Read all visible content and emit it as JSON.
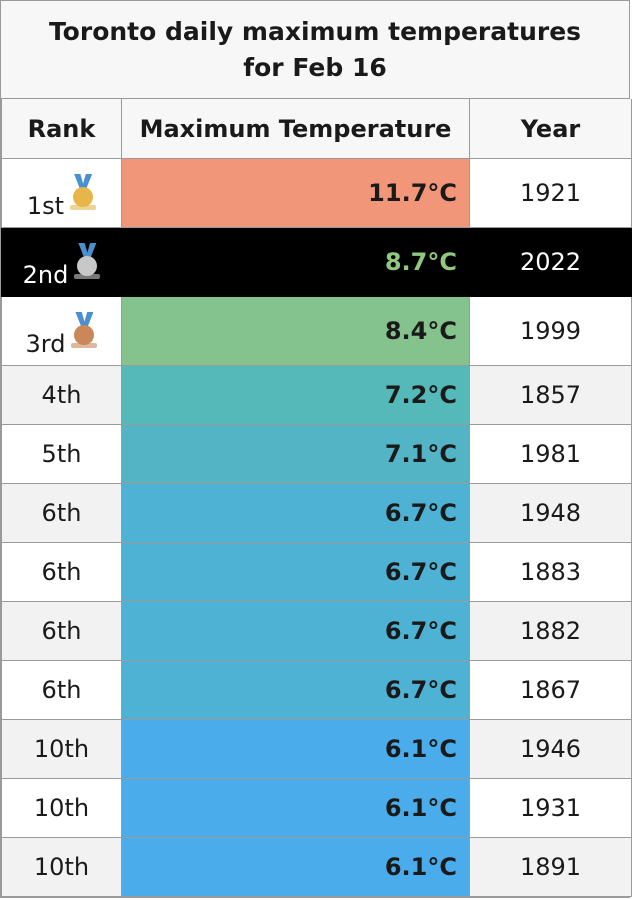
{
  "title": "Toronto daily maximum temperatures for Feb 16",
  "headers": {
    "rank": "Rank",
    "temp": "Maximum Temperature",
    "year": "Year"
  },
  "colors": {
    "gold": "#e6b64a",
    "silver": "#c8c8c8",
    "bronze": "#c9875a",
    "highlight_row_bg": "#000000",
    "highlight_temp_text": "#8fc87e"
  },
  "chart_data": {
    "type": "table",
    "title": "Toronto daily maximum temperatures for Feb 16",
    "columns": [
      "Rank",
      "Maximum Temperature",
      "Year"
    ],
    "rows": [
      {
        "rank": "1st",
        "temp": "11.7°C",
        "value": 11.7,
        "year": "1921",
        "medal": "gold-medal-icon",
        "color": "#f2967a"
      },
      {
        "rank": "2nd",
        "temp": "8.7°C",
        "value": 8.7,
        "year": "2022",
        "medal": "silver-medal-icon",
        "color": "#000000",
        "highlight": true
      },
      {
        "rank": "3rd",
        "temp": "8.4°C",
        "value": 8.4,
        "year": "1999",
        "medal": "bronze-medal-icon",
        "color": "#84c38d"
      },
      {
        "rank": "4th",
        "temp": "7.2°C",
        "value": 7.2,
        "year": "1857",
        "color": "#55b8b9"
      },
      {
        "rank": "5th",
        "temp": "7.1°C",
        "value": 7.1,
        "year": "1981",
        "color": "#52b4c4"
      },
      {
        "rank": "6th",
        "temp": "6.7°C",
        "value": 6.7,
        "year": "1948",
        "color": "#4eb2d4"
      },
      {
        "rank": "6th",
        "temp": "6.7°C",
        "value": 6.7,
        "year": "1883",
        "color": "#4eb2d4"
      },
      {
        "rank": "6th",
        "temp": "6.7°C",
        "value": 6.7,
        "year": "1882",
        "color": "#4eb2d4"
      },
      {
        "rank": "6th",
        "temp": "6.7°C",
        "value": 6.7,
        "year": "1867",
        "color": "#4eb2d4"
      },
      {
        "rank": "10th",
        "temp": "6.1°C",
        "value": 6.1,
        "year": "1946",
        "color": "#4aacea"
      },
      {
        "rank": "10th",
        "temp": "6.1°C",
        "value": 6.1,
        "year": "1931",
        "color": "#4aacea"
      },
      {
        "rank": "10th",
        "temp": "6.1°C",
        "value": 6.1,
        "year": "1891",
        "color": "#4aacea"
      }
    ]
  }
}
